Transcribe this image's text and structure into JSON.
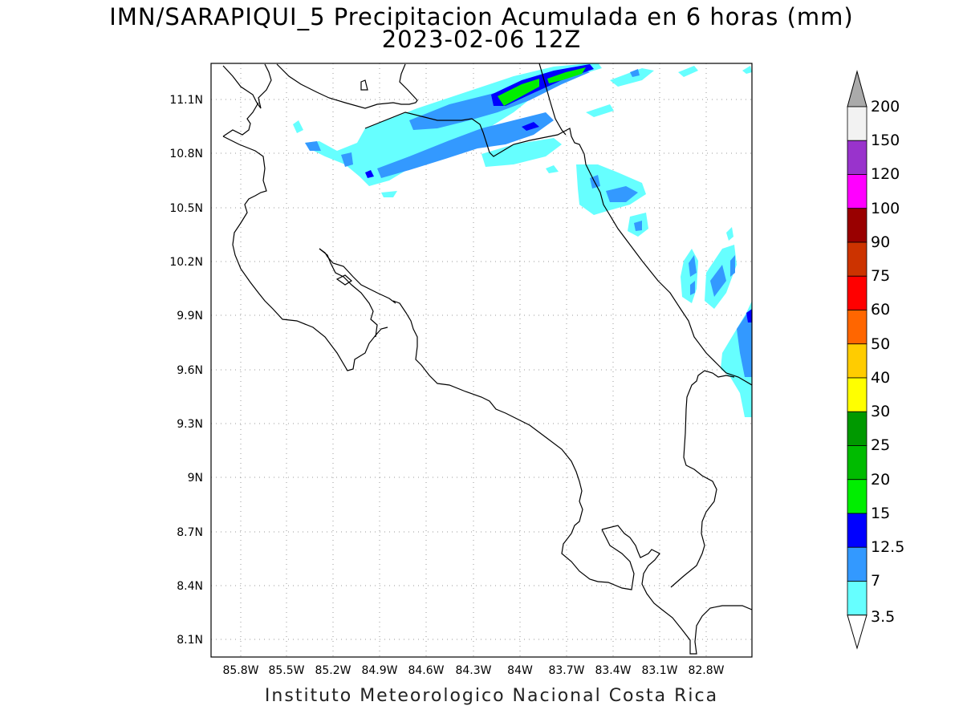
{
  "title": {
    "line1": "IMN/SARAPIQUI_5 Precipitacion Acumulada en 6 horas (mm)",
    "line2": "2023-02-06 12Z"
  },
  "credit": "Instituto Meteorologico Nacional Costa Rica",
  "axes": {
    "lon_ticks": [
      "85.8W",
      "85.5W",
      "85.2W",
      "84.9W",
      "84.6W",
      "84.3W",
      "84W",
      "83.7W",
      "83.4W",
      "83.1W",
      "82.8W"
    ],
    "lat_ticks": [
      "11.1N",
      "10.8N",
      "10.5N",
      "10.2N",
      "9.9N",
      "9.6N",
      "9.3N",
      "9N",
      "8.7N",
      "8.4N",
      "8.1N"
    ]
  },
  "colorbar": {
    "labels": [
      "200",
      "150",
      "120",
      "100",
      "90",
      "75",
      "60",
      "50",
      "40",
      "30",
      "25",
      "20",
      "15",
      "12.5",
      "7",
      "3.5"
    ],
    "colors": [
      "#f2f2f2",
      "#9933cc",
      "#ff00ff",
      "#990000",
      "#cc3300",
      "#ff0000",
      "#ff6600",
      "#ffcc00",
      "#ffff00",
      "#009900",
      "#00bb00",
      "#00ee00",
      "#0000ff",
      "#3399ff",
      "#66ffff"
    ],
    "top_arrow_color": "#aaaaaa",
    "bottom_arrow_color": "#ffffff"
  }
}
